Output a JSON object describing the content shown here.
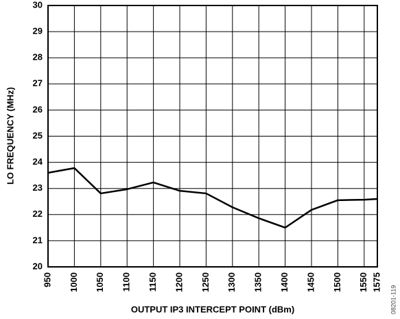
{
  "chart_data": {
    "type": "line",
    "x_label": "OUTPUT IP3 INTERCEPT POINT (dBm)",
    "y_label": "LO FREQUENCY (MHz)",
    "note": "08201-119",
    "x": [
      950,
      1000,
      1050,
      1100,
      1150,
      1200,
      1250,
      1300,
      1350,
      1400,
      1450,
      1500,
      1550,
      1575
    ],
    "series": [
      {
        "color": "#000000",
        "values": [
          23.6,
          23.78,
          22.81,
          22.97,
          23.23,
          22.91,
          22.81,
          22.28,
          21.86,
          21.5,
          22.18,
          22.55,
          22.57,
          22.6
        ]
      }
    ],
    "xlim": [
      950,
      1575
    ],
    "xticks": [
      950,
      1000,
      1050,
      1100,
      1150,
      1200,
      1250,
      1300,
      1350,
      1400,
      1450,
      1500,
      1550,
      1575
    ],
    "ylim": [
      20,
      30
    ],
    "yticks": [
      20,
      21,
      22,
      23,
      24,
      25,
      26,
      27,
      28,
      29,
      30
    ],
    "grid": true
  }
}
